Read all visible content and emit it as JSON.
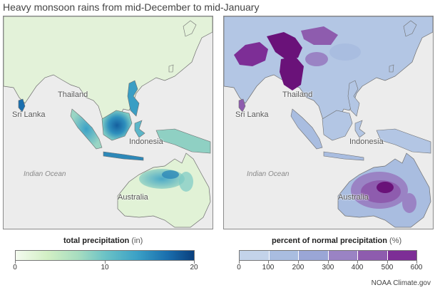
{
  "title": "Heavy monsoon rains from mid-December to mid-January",
  "map_labels": {
    "sri_lanka": "Sri Lanka",
    "thailand": "Thailand",
    "indonesia": "Indonesia",
    "indian_ocean": "Indian Ocean",
    "australia": "Australia"
  },
  "legend_left": {
    "label": "total precipitation",
    "unit": "(in)",
    "ticks": [
      "0",
      "10",
      "20"
    ]
  },
  "legend_right": {
    "label": "percent of normal precipitation",
    "unit": "(%)",
    "ticks": [
      "0",
      "100",
      "200",
      "300",
      "400",
      "500",
      "600"
    ],
    "colors": [
      "#c3d3ea",
      "#a9bde0",
      "#9aa6d6",
      "#9a83c4",
      "#8e5cae",
      "#7d2e96",
      "#6a1279"
    ]
  },
  "credit": "NOAA Climate.gov",
  "colors": {
    "ocean": "#ececec",
    "border": "#6e6e6e",
    "left_land_low": "#e7f4df",
    "left_wet_mid": "#5bb6c9",
    "left_wet_high": "#15609f",
    "right_below": "#c3d3ea",
    "right_near": "#a9bde0",
    "right_high": "#8e5cae",
    "right_extreme": "#6a1279"
  }
}
